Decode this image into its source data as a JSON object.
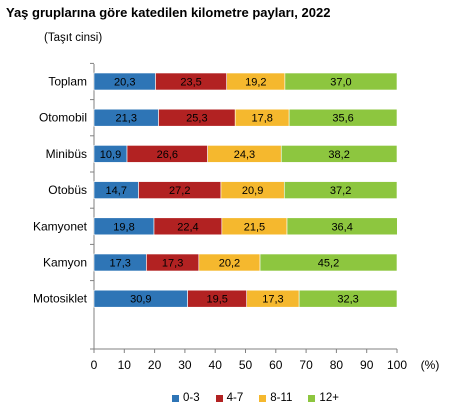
{
  "chart_data": {
    "type": "bar",
    "orientation": "horizontal",
    "stacked": true,
    "title": "Yaş gruplarına göre katedilen kilometre payları, 2022",
    "subtitle": "(Taşıt cinsi)",
    "x_unit": "(%)",
    "xlim": [
      0,
      100
    ],
    "x_ticks": [
      "0",
      "10",
      "20",
      "30",
      "40",
      "50",
      "60",
      "70",
      "80",
      "90",
      "100"
    ],
    "grid": false,
    "legend_position": "bottom",
    "categories": [
      "Toplam",
      "Otomobil",
      "Minibüs",
      "Otobüs",
      "Kamyonet",
      "Kamyon",
      "Motosiklet"
    ],
    "series": [
      {
        "name": "0-3",
        "color": "#2e75b6",
        "values": [
          20.3,
          21.3,
          10.9,
          14.7,
          19.8,
          17.3,
          30.9
        ],
        "labels": [
          "20,3",
          "21,3",
          "10,9",
          "14,7",
          "19,8",
          "17,3",
          "30,9"
        ]
      },
      {
        "name": "4-7",
        "color": "#b22222",
        "values": [
          23.5,
          25.3,
          26.6,
          27.2,
          22.4,
          17.3,
          19.5
        ],
        "labels": [
          "23,5",
          "25,3",
          "26,6",
          "27,2",
          "22,4",
          "17,3",
          "19,5"
        ]
      },
      {
        "name": "8-11",
        "color": "#f5b82e",
        "values": [
          19.2,
          17.8,
          24.3,
          20.9,
          21.5,
          20.2,
          17.3
        ],
        "labels": [
          "19,2",
          "17,8",
          "24,3",
          "20,9",
          "21,5",
          "20,2",
          "17,3"
        ]
      },
      {
        "name": "12+",
        "color": "#8dc63f",
        "values": [
          37.0,
          35.6,
          38.2,
          37.2,
          36.4,
          45.2,
          32.3
        ],
        "labels": [
          "37,0",
          "35,6",
          "38,2",
          "37,2",
          "36,4",
          "45,2",
          "32,3"
        ]
      }
    ]
  }
}
